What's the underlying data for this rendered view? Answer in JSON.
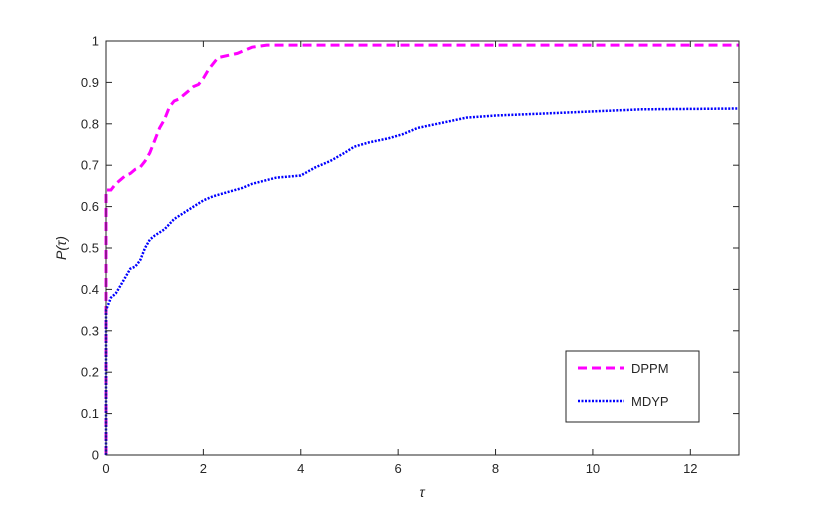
{
  "chart_data": {
    "type": "line",
    "title": "",
    "xlabel": "τ",
    "ylabel": "P(τ)",
    "xlim": [
      0,
      13
    ],
    "ylim": [
      0,
      1
    ],
    "xticks": [
      0,
      2,
      4,
      6,
      8,
      10,
      12
    ],
    "yticks": [
      0,
      0.1,
      0.2,
      0.3,
      0.4,
      0.5,
      0.6,
      0.7,
      0.8,
      0.9,
      1
    ],
    "grid": false,
    "legend_position": "bottom-right",
    "series": [
      {
        "name": "DPPM",
        "color": "#ff00ff",
        "line_style": "dashed",
        "points": [
          [
            0,
            0
          ],
          [
            0,
            0.64
          ],
          [
            0.1,
            0.64
          ],
          [
            0.2,
            0.655
          ],
          [
            0.3,
            0.665
          ],
          [
            0.4,
            0.675
          ],
          [
            0.5,
            0.68
          ],
          [
            0.6,
            0.69
          ],
          [
            0.7,
            0.695
          ],
          [
            0.8,
            0.71
          ],
          [
            0.9,
            0.73
          ],
          [
            1.0,
            0.76
          ],
          [
            1.1,
            0.79
          ],
          [
            1.2,
            0.81
          ],
          [
            1.3,
            0.84
          ],
          [
            1.4,
            0.855
          ],
          [
            1.5,
            0.86
          ],
          [
            1.6,
            0.87
          ],
          [
            1.7,
            0.88
          ],
          [
            1.8,
            0.89
          ],
          [
            1.9,
            0.895
          ],
          [
            2.0,
            0.91
          ],
          [
            2.1,
            0.93
          ],
          [
            2.2,
            0.945
          ],
          [
            2.3,
            0.96
          ],
          [
            2.7,
            0.97
          ],
          [
            2.9,
            0.98
          ],
          [
            3.0,
            0.985
          ],
          [
            3.3,
            0.99
          ],
          [
            13,
            0.99
          ]
        ]
      },
      {
        "name": "MDYP",
        "color": "#0000ff",
        "line_style": "dotted",
        "points": [
          [
            0,
            0
          ],
          [
            0,
            0.35
          ],
          [
            0.1,
            0.38
          ],
          [
            0.2,
            0.39
          ],
          [
            0.3,
            0.41
          ],
          [
            0.4,
            0.43
          ],
          [
            0.5,
            0.45
          ],
          [
            0.6,
            0.455
          ],
          [
            0.7,
            0.47
          ],
          [
            0.8,
            0.5
          ],
          [
            0.9,
            0.52
          ],
          [
            1.0,
            0.53
          ],
          [
            1.2,
            0.545
          ],
          [
            1.4,
            0.57
          ],
          [
            1.6,
            0.585
          ],
          [
            1.8,
            0.6
          ],
          [
            2.0,
            0.615
          ],
          [
            2.2,
            0.625
          ],
          [
            2.5,
            0.635
          ],
          [
            2.8,
            0.645
          ],
          [
            3.0,
            0.655
          ],
          [
            3.5,
            0.67
          ],
          [
            4.0,
            0.675
          ],
          [
            4.3,
            0.695
          ],
          [
            4.6,
            0.71
          ],
          [
            4.9,
            0.73
          ],
          [
            5.1,
            0.745
          ],
          [
            5.4,
            0.755
          ],
          [
            5.8,
            0.765
          ],
          [
            6.1,
            0.775
          ],
          [
            6.4,
            0.79
          ],
          [
            6.8,
            0.8
          ],
          [
            7.2,
            0.81
          ],
          [
            7.4,
            0.815
          ],
          [
            8.0,
            0.82
          ],
          [
            9.0,
            0.825
          ],
          [
            10.0,
            0.83
          ],
          [
            11.0,
            0.835
          ],
          [
            13,
            0.837
          ]
        ]
      }
    ]
  }
}
